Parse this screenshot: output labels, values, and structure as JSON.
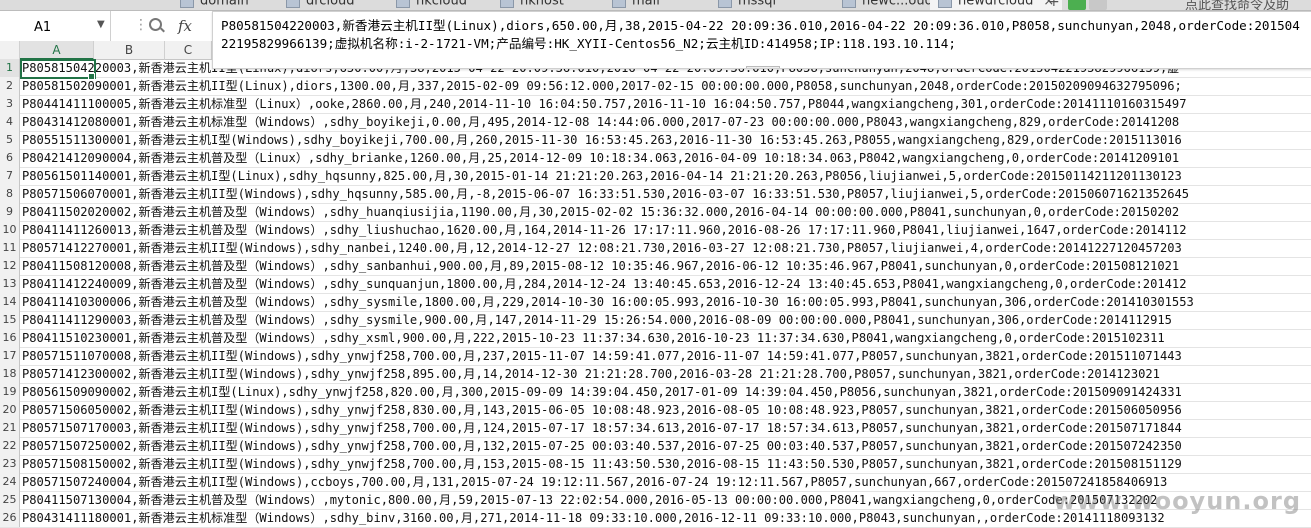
{
  "tabs": [
    {
      "label": "domain"
    },
    {
      "label": "drcloud"
    },
    {
      "label": "hkcloud"
    },
    {
      "label": "hkhost"
    },
    {
      "label": "mail"
    },
    {
      "label": "mssql"
    },
    {
      "label": "newc...oud"
    },
    {
      "label": "newdrcloud"
    }
  ],
  "extra_tab": "点此查找命令及助",
  "name_box": "A1",
  "formula_text": "P80581504220003,新香港云主机II型(Linux),diors,650.00,月,38,2015-04-22 20:09:36.010,2016-04-22 20:09:36.010,P8058,sunchunyan,2048,orderCode:20150422195829966139;虚拟机名称:i-2-1721-VM;产品编号:HK_XYII-Centos56_N2;云主机ID:414958;IP:118.193.10.114;",
  "columns": [
    "A",
    "B",
    "C"
  ],
  "rows": [
    {
      "num": "1",
      "text": "P80581504220003,新香港云主机II型(Linux),diors,650.00,月,38,2015-04-22 20:09:36.010,2016-04-22 20:09:36.010,P8058,sunchunyan,2048,orderCode:20150422195829966139;虚"
    },
    {
      "num": "2",
      "text": "P80581502090001,新香港云主机II型(Linux),diors,1300.00,月,337,2015-02-09 09:56:12.000,2017-02-15 00:00:00.000,P8058,sunchunyan,2048,orderCode:20150209094632795096;"
    },
    {
      "num": "3",
      "text": "P80441411100005,新香港云主机标准型（Linux）,ooke,2860.00,月,240,2014-11-10 16:04:50.757,2016-11-10 16:04:50.757,P8044,wangxiangcheng,301,orderCode:20141110160315497"
    },
    {
      "num": "4",
      "text": "P80431412080001,新香港云主机标准型（Windows）,sdhy_boyikeji,0.00,月,495,2014-12-08 14:44:06.000,2017-07-23 00:00:00.000,P8043,wangxiangcheng,829,orderCode:20141208"
    },
    {
      "num": "5",
      "text": "P80551511300001,新香港云主机I型(Windows),sdhy_boyikeji,700.00,月,260,2015-11-30 16:53:45.263,2016-11-30 16:53:45.263,P8055,wangxiangcheng,829,orderCode:2015113016"
    },
    {
      "num": "6",
      "text": "P80421412090004,新香港云主机普及型（Linux）,sdhy_brianke,1260.00,月,25,2014-12-09 10:18:34.063,2016-04-09 10:18:34.063,P8042,wangxiangcheng,0,orderCode:20141209101"
    },
    {
      "num": "7",
      "text": "P80561501140001,新香港云主机I型(Linux),sdhy_hqsunny,825.00,月,30,2015-01-14 21:21:20.263,2016-04-14 21:21:20.263,P8056,liujianwei,5,orderCode:20150114211201130123"
    },
    {
      "num": "8",
      "text": "P80571506070001,新香港云主机II型(Windows),sdhy_hqsunny,585.00,月,-8,2015-06-07 16:33:51.530,2016-03-07 16:33:51.530,P8057,liujianwei,5,orderCode:201506071621352645"
    },
    {
      "num": "9",
      "text": "P80411502020002,新香港云主机普及型（Windows）,sdhy_huanqiusijia,1190.00,月,30,2015-02-02 15:36:32.000,2016-04-14 00:00:00.000,P8041,sunchunyan,0,orderCode:20150202"
    },
    {
      "num": "10",
      "text": "P80411411260013,新香港云主机普及型（Windows）,sdhy_liushuchao,1620.00,月,164,2014-11-26 17:17:11.960,2016-08-26 17:17:11.960,P8041,liujianwei,1647,orderCode:2014112"
    },
    {
      "num": "11",
      "text": "P80571412270001,新香港云主机II型(Windows),sdhy_nanbei,1240.00,月,12,2014-12-27 12:08:21.730,2016-03-27 12:08:21.730,P8057,liujianwei,4,orderCode:20141227120457203"
    },
    {
      "num": "12",
      "text": "P80411508120008,新香港云主机普及型（Windows）,sdhy_sanbanhui,900.00,月,89,2015-08-12 10:35:46.967,2016-06-12 10:35:46.967,P8041,sunchunyan,0,orderCode:201508121021"
    },
    {
      "num": "13",
      "text": "P80411412240009,新香港云主机普及型（Windows）,sdhy_sunquanjun,1800.00,月,284,2014-12-24 13:40:45.653,2016-12-24 13:40:45.653,P8041,wangxiangcheng,0,orderCode:201412"
    },
    {
      "num": "14",
      "text": "P80411410300006,新香港云主机普及型（Windows）,sdhy_sysmile,1800.00,月,229,2014-10-30 16:00:05.993,2016-10-30 16:00:05.993,P8041,sunchunyan,306,orderCode:201410301553"
    },
    {
      "num": "15",
      "text": "P80411411290003,新香港云主机普及型（Windows）,sdhy_sysmile,900.00,月,147,2014-11-29 15:26:54.000,2016-08-09 00:00:00.000,P8041,sunchunyan,306,orderCode:2014112915"
    },
    {
      "num": "16",
      "text": "P80411510230001,新香港云主机普及型（Windows）,sdhy_xsml,900.00,月,222,2015-10-23 11:37:34.630,2016-10-23 11:37:34.630,P8041,wangxiangcheng,0,orderCode:2015102311"
    },
    {
      "num": "17",
      "text": "P80571511070008,新香港云主机II型(Windows),sdhy_ynwjf258,700.00,月,237,2015-11-07 14:59:41.077,2016-11-07 14:59:41.077,P8057,sunchunyan,3821,orderCode:201511071443"
    },
    {
      "num": "18",
      "text": "P80571412300002,新香港云主机II型(Windows),sdhy_ynwjf258,895.00,月,14,2014-12-30 21:21:28.700,2016-03-28 21:21:28.700,P8057,sunchunyan,3821,orderCode:2014123021"
    },
    {
      "num": "19",
      "text": "P80561509090002,新香港云主机I型(Linux),sdhy_ynwjf258,820.00,月,300,2015-09-09 14:39:04.450,2017-01-09 14:39:04.450,P8056,sunchunyan,3821,orderCode:201509091424331"
    },
    {
      "num": "20",
      "text": "P80571506050002,新香港云主机II型(Windows),sdhy_ynwjf258,830.00,月,143,2015-06-05 10:08:48.923,2016-08-05 10:08:48.923,P8057,sunchunyan,3821,orderCode:201506050956"
    },
    {
      "num": "21",
      "text": "P80571507170003,新香港云主机II型(Windows),sdhy_ynwjf258,700.00,月,124,2015-07-17 18:57:34.613,2016-07-17 18:57:34.613,P8057,sunchunyan,3821,orderCode:201507171844"
    },
    {
      "num": "22",
      "text": "P80571507250002,新香港云主机II型(Windows),sdhy_ynwjf258,700.00,月,132,2015-07-25 00:03:40.537,2016-07-25 00:03:40.537,P8057,sunchunyan,3821,orderCode:201507242350"
    },
    {
      "num": "23",
      "text": "P80571508150002,新香港云主机II型(Windows),sdhy_ynwjf258,700.00,月,153,2015-08-15 11:43:50.530,2016-08-15 11:43:50.530,P8057,sunchunyan,3821,orderCode:201508151129"
    },
    {
      "num": "24",
      "text": "P80571507240004,新香港云主机II型(Windows),ccboys,700.00,月,131,2015-07-24 19:12:11.567,2016-07-24 19:12:11.567,P8057,sunchunyan,667,orderCode:201507241858406913"
    },
    {
      "num": "25",
      "text": "P80411507130004,新香港云主机普及型（Windows）,mytonic,800.00,月,59,2015-07-13 22:02:54.000,2016-05-13 00:00:00.000,P8041,wangxiangcheng,0,orderCode:201507132202"
    },
    {
      "num": "26",
      "text": "P80431411180001,新香港云主机标准型（Windows）,sdhy_binv,3160.00,月,271,2014-11-18 09:33:10.000,2016-12-11 09:33:10.000,P8043,sunchunyan,,orderCode:20141118093132"
    }
  ],
  "watermark": "www.wooyun.org"
}
